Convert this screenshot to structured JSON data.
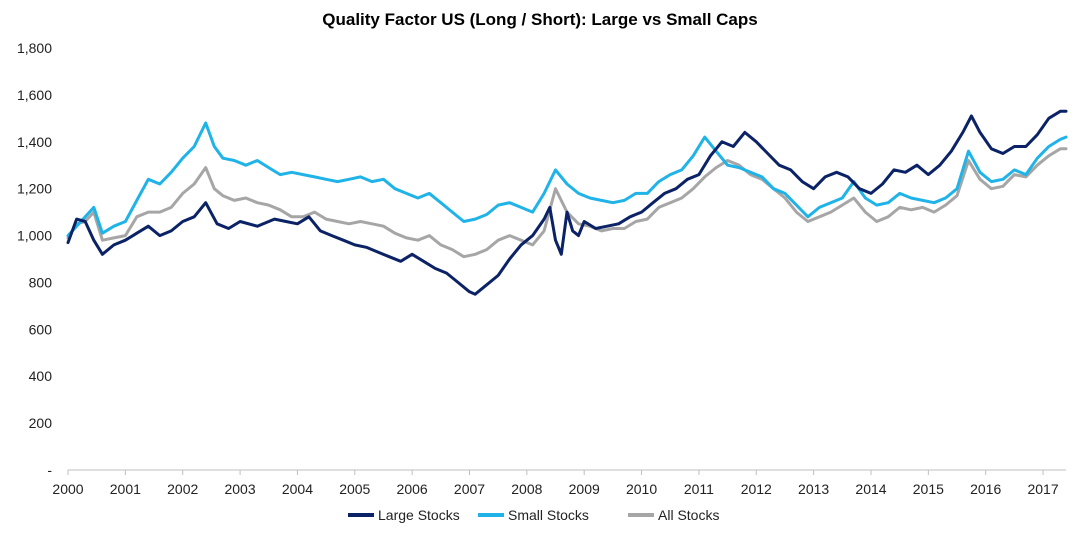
{
  "chart_data": {
    "type": "line",
    "title": "Quality Factor US (Long / Short): Large vs Small Caps",
    "xlabel": "",
    "ylabel": "",
    "xlim": [
      2000,
      2017.4
    ],
    "ylim": [
      0,
      1800
    ],
    "x_ticks": [
      "2000",
      "2001",
      "2002",
      "2003",
      "2004",
      "2005",
      "2006",
      "2007",
      "2008",
      "2009",
      "2010",
      "2011",
      "2012",
      "2013",
      "2014",
      "2015",
      "2016",
      "2017"
    ],
    "y_ticks": [
      {
        "value": 0,
        "label": "-"
      },
      {
        "value": 200,
        "label": "200"
      },
      {
        "value": 400,
        "label": "400"
      },
      {
        "value": 600,
        "label": "600"
      },
      {
        "value": 800,
        "label": "800"
      },
      {
        "value": 1000,
        "label": "1,000"
      },
      {
        "value": 1200,
        "label": "1,200"
      },
      {
        "value": 1400,
        "label": "1,400"
      },
      {
        "value": 1600,
        "label": "1,600"
      },
      {
        "value": 1800,
        "label": "1,800"
      }
    ],
    "grid": false,
    "legend_position": "bottom",
    "series": [
      {
        "name": "Large Stocks",
        "color": "#0b2366",
        "points": [
          [
            2000.0,
            970
          ],
          [
            2000.15,
            1070
          ],
          [
            2000.3,
            1060
          ],
          [
            2000.45,
            980
          ],
          [
            2000.6,
            920
          ],
          [
            2000.8,
            960
          ],
          [
            2001.0,
            980
          ],
          [
            2001.2,
            1010
          ],
          [
            2001.4,
            1040
          ],
          [
            2001.6,
            1000
          ],
          [
            2001.8,
            1020
          ],
          [
            2002.0,
            1060
          ],
          [
            2002.2,
            1080
          ],
          [
            2002.4,
            1140
          ],
          [
            2002.6,
            1050
          ],
          [
            2002.8,
            1030
          ],
          [
            2003.0,
            1060
          ],
          [
            2003.3,
            1040
          ],
          [
            2003.6,
            1070
          ],
          [
            2003.8,
            1060
          ],
          [
            2004.0,
            1050
          ],
          [
            2004.2,
            1080
          ],
          [
            2004.4,
            1020
          ],
          [
            2004.6,
            1000
          ],
          [
            2004.8,
            980
          ],
          [
            2005.0,
            960
          ],
          [
            2005.2,
            950
          ],
          [
            2005.4,
            930
          ],
          [
            2005.6,
            910
          ],
          [
            2005.8,
            890
          ],
          [
            2006.0,
            920
          ],
          [
            2006.2,
            890
          ],
          [
            2006.4,
            860
          ],
          [
            2006.6,
            840
          ],
          [
            2006.8,
            800
          ],
          [
            2007.0,
            760
          ],
          [
            2007.1,
            750
          ],
          [
            2007.3,
            790
          ],
          [
            2007.5,
            830
          ],
          [
            2007.7,
            900
          ],
          [
            2007.9,
            960
          ],
          [
            2008.1,
            1000
          ],
          [
            2008.3,
            1070
          ],
          [
            2008.4,
            1120
          ],
          [
            2008.5,
            980
          ],
          [
            2008.6,
            920
          ],
          [
            2008.7,
            1100
          ],
          [
            2008.8,
            1020
          ],
          [
            2008.9,
            1000
          ],
          [
            2009.0,
            1060
          ],
          [
            2009.2,
            1030
          ],
          [
            2009.4,
            1040
          ],
          [
            2009.6,
            1050
          ],
          [
            2009.8,
            1080
          ],
          [
            2010.0,
            1100
          ],
          [
            2010.2,
            1140
          ],
          [
            2010.4,
            1180
          ],
          [
            2010.6,
            1200
          ],
          [
            2010.8,
            1240
          ],
          [
            2011.0,
            1260
          ],
          [
            2011.2,
            1340
          ],
          [
            2011.4,
            1400
          ],
          [
            2011.6,
            1380
          ],
          [
            2011.8,
            1440
          ],
          [
            2012.0,
            1400
          ],
          [
            2012.2,
            1350
          ],
          [
            2012.4,
            1300
          ],
          [
            2012.6,
            1280
          ],
          [
            2012.8,
            1230
          ],
          [
            2013.0,
            1200
          ],
          [
            2013.2,
            1250
          ],
          [
            2013.4,
            1270
          ],
          [
            2013.6,
            1250
          ],
          [
            2013.8,
            1200
          ],
          [
            2014.0,
            1180
          ],
          [
            2014.2,
            1220
          ],
          [
            2014.4,
            1280
          ],
          [
            2014.6,
            1270
          ],
          [
            2014.8,
            1300
          ],
          [
            2015.0,
            1260
          ],
          [
            2015.2,
            1300
          ],
          [
            2015.4,
            1360
          ],
          [
            2015.6,
            1440
          ],
          [
            2015.75,
            1510
          ],
          [
            2015.9,
            1440
          ],
          [
            2016.1,
            1370
          ],
          [
            2016.3,
            1350
          ],
          [
            2016.5,
            1380
          ],
          [
            2016.7,
            1380
          ],
          [
            2016.9,
            1430
          ],
          [
            2017.1,
            1500
          ],
          [
            2017.3,
            1530
          ],
          [
            2017.4,
            1530
          ]
        ]
      },
      {
        "name": "Small Stocks",
        "color": "#1fb3e8",
        "points": [
          [
            2000.0,
            1000
          ],
          [
            2000.15,
            1040
          ],
          [
            2000.3,
            1080
          ],
          [
            2000.45,
            1120
          ],
          [
            2000.6,
            1010
          ],
          [
            2000.8,
            1040
          ],
          [
            2001.0,
            1060
          ],
          [
            2001.2,
            1150
          ],
          [
            2001.4,
            1240
          ],
          [
            2001.6,
            1220
          ],
          [
            2001.8,
            1270
          ],
          [
            2002.0,
            1330
          ],
          [
            2002.2,
            1380
          ],
          [
            2002.4,
            1480
          ],
          [
            2002.55,
            1380
          ],
          [
            2002.7,
            1330
          ],
          [
            2002.9,
            1320
          ],
          [
            2003.1,
            1300
          ],
          [
            2003.3,
            1320
          ],
          [
            2003.5,
            1290
          ],
          [
            2003.7,
            1260
          ],
          [
            2003.9,
            1270
          ],
          [
            2004.1,
            1260
          ],
          [
            2004.3,
            1250
          ],
          [
            2004.5,
            1240
          ],
          [
            2004.7,
            1230
          ],
          [
            2004.9,
            1240
          ],
          [
            2005.1,
            1250
          ],
          [
            2005.3,
            1230
          ],
          [
            2005.5,
            1240
          ],
          [
            2005.7,
            1200
          ],
          [
            2005.9,
            1180
          ],
          [
            2006.1,
            1160
          ],
          [
            2006.3,
            1180
          ],
          [
            2006.5,
            1140
          ],
          [
            2006.7,
            1100
          ],
          [
            2006.9,
            1060
          ],
          [
            2007.1,
            1070
          ],
          [
            2007.3,
            1090
          ],
          [
            2007.5,
            1130
          ],
          [
            2007.7,
            1140
          ],
          [
            2007.9,
            1120
          ],
          [
            2008.1,
            1100
          ],
          [
            2008.3,
            1180
          ],
          [
            2008.5,
            1280
          ],
          [
            2008.7,
            1220
          ],
          [
            2008.9,
            1180
          ],
          [
            2009.1,
            1160
          ],
          [
            2009.3,
            1150
          ],
          [
            2009.5,
            1140
          ],
          [
            2009.7,
            1150
          ],
          [
            2009.9,
            1180
          ],
          [
            2010.1,
            1180
          ],
          [
            2010.3,
            1230
          ],
          [
            2010.5,
            1260
          ],
          [
            2010.7,
            1280
          ],
          [
            2010.9,
            1340
          ],
          [
            2011.1,
            1420
          ],
          [
            2011.3,
            1360
          ],
          [
            2011.5,
            1300
          ],
          [
            2011.7,
            1290
          ],
          [
            2011.9,
            1270
          ],
          [
            2012.1,
            1250
          ],
          [
            2012.3,
            1200
          ],
          [
            2012.5,
            1180
          ],
          [
            2012.7,
            1130
          ],
          [
            2012.9,
            1080
          ],
          [
            2013.1,
            1120
          ],
          [
            2013.3,
            1140
          ],
          [
            2013.5,
            1160
          ],
          [
            2013.7,
            1230
          ],
          [
            2013.9,
            1160
          ],
          [
            2014.1,
            1130
          ],
          [
            2014.3,
            1140
          ],
          [
            2014.5,
            1180
          ],
          [
            2014.7,
            1160
          ],
          [
            2014.9,
            1150
          ],
          [
            2015.1,
            1140
          ],
          [
            2015.3,
            1160
          ],
          [
            2015.5,
            1200
          ],
          [
            2015.7,
            1360
          ],
          [
            2015.9,
            1270
          ],
          [
            2016.1,
            1230
          ],
          [
            2016.3,
            1240
          ],
          [
            2016.5,
            1280
          ],
          [
            2016.7,
            1260
          ],
          [
            2016.9,
            1330
          ],
          [
            2017.1,
            1380
          ],
          [
            2017.3,
            1410
          ],
          [
            2017.4,
            1420
          ]
        ]
      },
      {
        "name": "All Stocks",
        "color": "#a6a6a6",
        "points": [
          [
            2000.0,
            990
          ],
          [
            2000.15,
            1050
          ],
          [
            2000.3,
            1060
          ],
          [
            2000.45,
            1100
          ],
          [
            2000.6,
            980
          ],
          [
            2000.8,
            990
          ],
          [
            2001.0,
            1000
          ],
          [
            2001.2,
            1080
          ],
          [
            2001.4,
            1100
          ],
          [
            2001.6,
            1100
          ],
          [
            2001.8,
            1120
          ],
          [
            2002.0,
            1180
          ],
          [
            2002.2,
            1220
          ],
          [
            2002.4,
            1290
          ],
          [
            2002.55,
            1200
          ],
          [
            2002.7,
            1170
          ],
          [
            2002.9,
            1150
          ],
          [
            2003.1,
            1160
          ],
          [
            2003.3,
            1140
          ],
          [
            2003.5,
            1130
          ],
          [
            2003.7,
            1110
          ],
          [
            2003.9,
            1080
          ],
          [
            2004.1,
            1080
          ],
          [
            2004.3,
            1100
          ],
          [
            2004.5,
            1070
          ],
          [
            2004.7,
            1060
          ],
          [
            2004.9,
            1050
          ],
          [
            2005.1,
            1060
          ],
          [
            2005.3,
            1050
          ],
          [
            2005.5,
            1040
          ],
          [
            2005.7,
            1010
          ],
          [
            2005.9,
            990
          ],
          [
            2006.1,
            980
          ],
          [
            2006.3,
            1000
          ],
          [
            2006.5,
            960
          ],
          [
            2006.7,
            940
          ],
          [
            2006.9,
            910
          ],
          [
            2007.1,
            920
          ],
          [
            2007.3,
            940
          ],
          [
            2007.5,
            980
          ],
          [
            2007.7,
            1000
          ],
          [
            2007.9,
            980
          ],
          [
            2008.1,
            960
          ],
          [
            2008.3,
            1020
          ],
          [
            2008.5,
            1200
          ],
          [
            2008.7,
            1100
          ],
          [
            2008.9,
            1050
          ],
          [
            2009.1,
            1040
          ],
          [
            2009.3,
            1020
          ],
          [
            2009.5,
            1030
          ],
          [
            2009.7,
            1030
          ],
          [
            2009.9,
            1060
          ],
          [
            2010.1,
            1070
          ],
          [
            2010.3,
            1120
          ],
          [
            2010.5,
            1140
          ],
          [
            2010.7,
            1160
          ],
          [
            2010.9,
            1200
          ],
          [
            2011.1,
            1250
          ],
          [
            2011.3,
            1290
          ],
          [
            2011.5,
            1320
          ],
          [
            2011.7,
            1300
          ],
          [
            2011.9,
            1260
          ],
          [
            2012.1,
            1240
          ],
          [
            2012.3,
            1200
          ],
          [
            2012.5,
            1160
          ],
          [
            2012.7,
            1100
          ],
          [
            2012.9,
            1060
          ],
          [
            2013.1,
            1080
          ],
          [
            2013.3,
            1100
          ],
          [
            2013.5,
            1130
          ],
          [
            2013.7,
            1160
          ],
          [
            2013.9,
            1100
          ],
          [
            2014.1,
            1060
          ],
          [
            2014.3,
            1080
          ],
          [
            2014.5,
            1120
          ],
          [
            2014.7,
            1110
          ],
          [
            2014.9,
            1120
          ],
          [
            2015.1,
            1100
          ],
          [
            2015.3,
            1130
          ],
          [
            2015.5,
            1170
          ],
          [
            2015.7,
            1320
          ],
          [
            2015.9,
            1240
          ],
          [
            2016.1,
            1200
          ],
          [
            2016.3,
            1210
          ],
          [
            2016.5,
            1260
          ],
          [
            2016.7,
            1250
          ],
          [
            2016.9,
            1300
          ],
          [
            2017.1,
            1340
          ],
          [
            2017.3,
            1370
          ],
          [
            2017.4,
            1370
          ]
        ]
      }
    ]
  }
}
